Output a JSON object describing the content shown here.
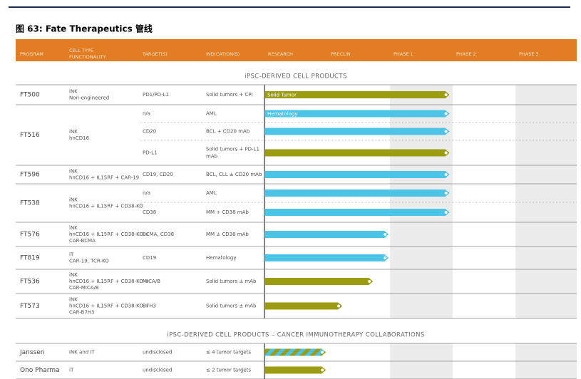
{
  "title": "图 63: Fate Therapeutics 管线",
  "header": {
    "columns": [
      [
        "PROGRAM"
      ],
      [
        "CELL TYPE",
        "FUNCTIONALITY"
      ],
      [
        "TARGET(S)"
      ],
      [
        "INDICATION(S)"
      ],
      [
        "RESEARCH"
      ],
      [
        "PRECLIN"
      ],
      [
        "PHASE 1"
      ],
      [
        "PHASE 2"
      ],
      [
        "PHASE 3"
      ]
    ]
  },
  "sections": [
    {
      "title": "iPSC-DERIVED CELL PRODUCTS",
      "programs": [
        {
          "name": "FT500",
          "cell_type": "iNK",
          "cell_detail": [
            "Non-engineered"
          ],
          "rows": [
            {
              "target": "PD1/PD-L1",
              "indication": [
                "Solid tumors + CPI"
              ],
              "bar_label": "Solid Tumor",
              "color": "#9c9c10",
              "progress": 2.95
            }
          ]
        },
        {
          "name": "FT516",
          "cell_type": "iNK",
          "cell_detail": [
            "hnCD16"
          ],
          "rows": [
            {
              "target": "n/a",
              "indication": [
                "AML"
              ],
              "bar_label": "Hematology",
              "color": "#4cc4e8",
              "progress": 2.95
            },
            {
              "target": "CD20",
              "indication": [
                "BCL + CD20 mAb"
              ],
              "color": "#4cc4e8",
              "progress": 2.95
            },
            {
              "target": "PD-L1",
              "indication": [
                "Solid tumors + PD-L1",
                "mAb"
              ],
              "color": "#9c9c10",
              "progress": 2.95
            }
          ]
        },
        {
          "name": "FT596",
          "cell_type": "iNK",
          "cell_detail": [
            "hnCD16 + IL15RF + CAR-19"
          ],
          "rows": [
            {
              "target": "CD19, CD20",
              "indication": [
                "BCL, CLL ± CD20 mAb"
              ],
              "color": "#4cc4e8",
              "progress": 2.95
            }
          ]
        },
        {
          "name": "FT538",
          "cell_type": "iNK",
          "cell_detail": [
            "hnCD16 + IL15RF + CD38-KO"
          ],
          "rows": [
            {
              "target": "n/a",
              "indication": [
                "AML"
              ],
              "color": "#4cc4e8",
              "progress": 2.95
            },
            {
              "target": "CD38",
              "indication": [
                "MM + CD38 mAb"
              ],
              "color": "#4cc4e8",
              "progress": 2.95
            }
          ]
        },
        {
          "name": "FT576",
          "cell_type": "iNK",
          "cell_detail": [
            "hnCD16 + IL15RF + CD38-KO +",
            "CAR-BCMA"
          ],
          "rows": [
            {
              "target": "BCMA, CD38",
              "indication": [
                "MM ± CD38 mAb"
              ],
              "color": "#4cc4e8",
              "progress": 1.98
            }
          ]
        },
        {
          "name": "FT819",
          "cell_type": "iT",
          "cell_detail": [
            "CAR-19, TCR-KO"
          ],
          "rows": [
            {
              "target": "CD19",
              "indication": [
                "Hematology"
              ],
              "color": "#4cc4e8",
              "progress": 1.98
            }
          ]
        },
        {
          "name": "FT536",
          "cell_type": "iNK",
          "cell_detail": [
            "hnCD16 + IL15RF + CD38-KO +",
            "CAR-MICA/B"
          ],
          "rows": [
            {
              "target": "MICA/B",
              "indication": [
                "Solid tumors ± mAb"
              ],
              "color": "#9c9c10",
              "progress": 1.73
            }
          ]
        },
        {
          "name": "FT573",
          "cell_type": "iNK",
          "cell_detail": [
            "hnCD16 + IL15RF + CD38-KO +",
            "CAR-B7H3"
          ],
          "rows": [
            {
              "target": "B7H3",
              "indication": [
                "Solid tumors ± mAb"
              ],
              "color": "#9c9c10",
              "progress": 1.24
            }
          ]
        }
      ]
    },
    {
      "title": "iPSC-DERIVED CELL PRODUCTS – CANCER IMMUNOTHERAPY COLLABORATIONS",
      "programs": [
        {
          "name": "Janssen",
          "cell_type": "iNK and iT",
          "cell_detail": [],
          "rows": [
            {
              "target": "undisclosed",
              "indication": [
                "≤ 4 tumor targets"
              ],
              "color": [
                "#9c9c10",
                "#4cc4e8"
              ],
              "progress": 0.98
            }
          ]
        },
        {
          "name": "Ono Pharma",
          "cell_type": "iT",
          "cell_detail": [],
          "rows": [
            {
              "target": "undisclosed",
              "indication": [
                "≤ 2 tumor targets"
              ],
              "color": "#9c9c10",
              "progress": 0.98
            }
          ]
        }
      ]
    }
  ]
}
